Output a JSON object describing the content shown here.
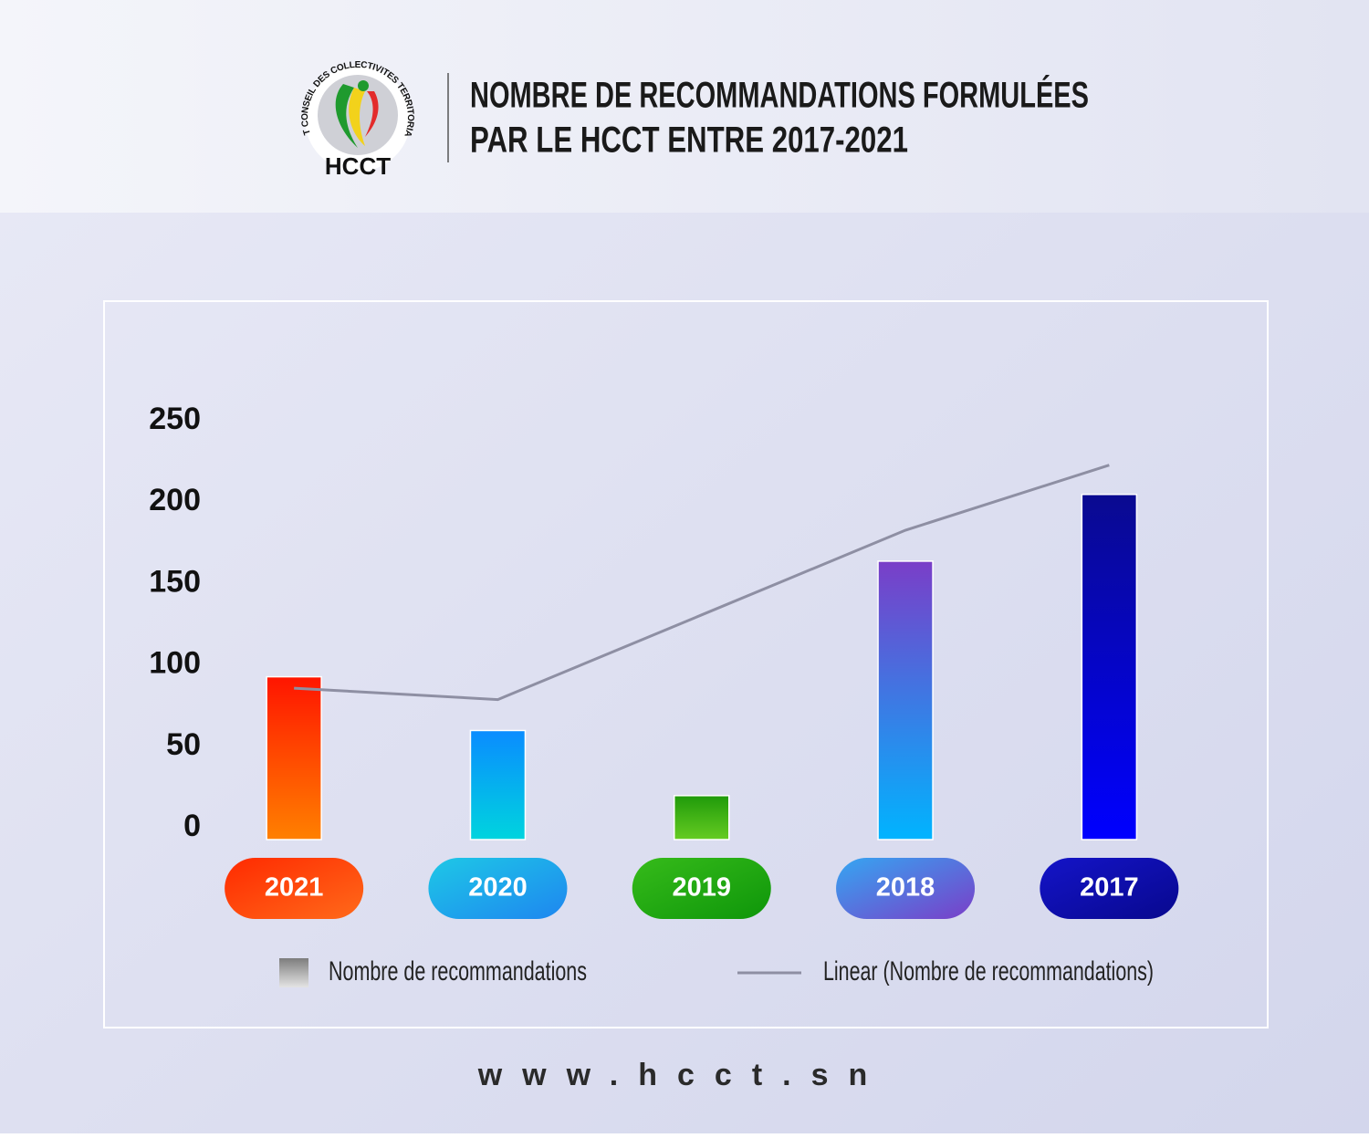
{
  "logo": {
    "name": "HAUT CONSEIL DES COLLECTIVITES TERRITORIALES",
    "acronym": "HCCT"
  },
  "chart_data": {
    "type": "bar",
    "title": [
      "NOMBRE DE RECOMMANDATIONS FORMULÉES",
      "PAR LE HCCT ENTRE 2017-2021"
    ],
    "categories": [
      "2021",
      "2020",
      "2019",
      "2018",
      "2017"
    ],
    "series": [
      {
        "name": "Nombre de recommandations",
        "type": "bar",
        "color": "#9a9a9a",
        "values": [
          100,
          67,
          27,
          171,
          212
        ]
      },
      {
        "name": "Linear (Nombre de recommandations)",
        "type": "line",
        "color": "#8e8fa3",
        "values": [
          93,
          86,
          138,
          190,
          230
        ]
      }
    ],
    "bar_gradients": [
      [
        "#ff1500",
        "#ff8000"
      ],
      [
        "#0a8cff",
        "#00d4de"
      ],
      [
        "#1f9a0a",
        "#66cc22"
      ],
      [
        "#7a3ec8",
        "#00b4ff"
      ],
      [
        "#0a0a90",
        "#0000ff"
      ]
    ],
    "pill_gradients": [
      [
        "#ff2a00",
        "#ff6a1a"
      ],
      [
        "#1ec8e6",
        "#1e86f0"
      ],
      [
        "#36bb1a",
        "#0e960a"
      ],
      [
        "#35a6f2",
        "#7a3ec8"
      ],
      [
        "#1414c8",
        "#08088e"
      ]
    ],
    "ylim": [
      0,
      250
    ],
    "yticks": [
      0,
      50,
      100,
      150,
      200,
      250
    ],
    "grid": false
  },
  "footer": "www.hcct.sn"
}
